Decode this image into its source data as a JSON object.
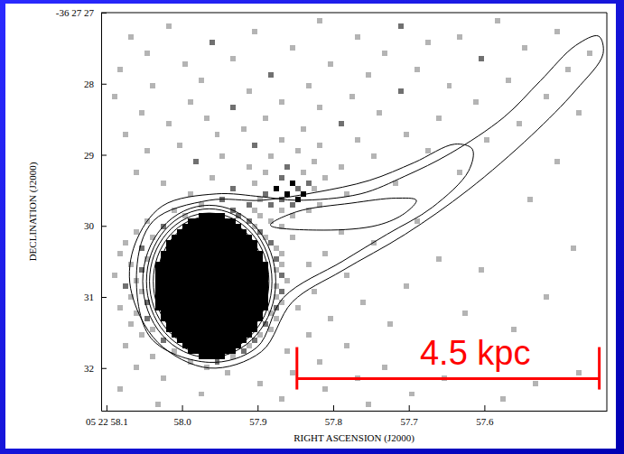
{
  "chart_data": {
    "type": "image",
    "x_label": "RIGHT ASCENSION (J2000)",
    "y_label": "DECLINATION (J2000)",
    "xlim": [
      58.107,
      57.438
    ],
    "ylim": [
      32.6,
      27
    ],
    "xticks": [
      {
        "value": 58.1,
        "label": "05 22 58.1"
      },
      {
        "value": 58.0,
        "label": "58.0"
      },
      57.9,
      57.8,
      57.7,
      57.6
    ],
    "yticks": [
      {
        "value": 27,
        "label": "-36 27 27"
      },
      28,
      29,
      30,
      31,
      32
    ],
    "image": {
      "ra0": 58.107,
      "dec0": 27,
      "dra": -0.00714,
      "ddec": 0.0761,
      "levels": [
        1,
        2,
        3
      ],
      "colors": [
        "#b4b4b4",
        "#707070",
        "#000000"
      ],
      "runs": [
        [
          37,
          18,
          22,
          3
        ],
        [
          38,
          16,
          24,
          3
        ],
        [
          39,
          15,
          25,
          3
        ],
        [
          40,
          14,
          26,
          3
        ],
        [
          41,
          13,
          27,
          3
        ],
        [
          42,
          12,
          28,
          3
        ],
        [
          43,
          12,
          28,
          3
        ],
        [
          44,
          11,
          29,
          3
        ],
        [
          45,
          11,
          29,
          3
        ],
        [
          46,
          10,
          30,
          3
        ],
        [
          47,
          10,
          30,
          3
        ],
        [
          48,
          10,
          30,
          3
        ],
        [
          49,
          10,
          30,
          3
        ],
        [
          50,
          10,
          30,
          3
        ],
        [
          51,
          10,
          30,
          3
        ],
        [
          52,
          10,
          30,
          3
        ],
        [
          53,
          10,
          30,
          3
        ],
        [
          54,
          10,
          30,
          3
        ],
        [
          55,
          11,
          29,
          3
        ],
        [
          56,
          11,
          29,
          3
        ],
        [
          57,
          12,
          28,
          3
        ],
        [
          58,
          12,
          28,
          3
        ],
        [
          59,
          13,
          27,
          3
        ],
        [
          60,
          14,
          26,
          3
        ],
        [
          61,
          15,
          25,
          3
        ],
        [
          62,
          16,
          24,
          3
        ],
        [
          63,
          18,
          22,
          3
        ]
      ],
      "cells": [
        [
          1,
          40,
          1
        ],
        [
          1,
          73,
          1
        ],
        [
          2,
          12,
          1
        ],
        [
          2,
          55,
          2
        ],
        [
          3,
          28,
          1
        ],
        [
          3,
          84,
          1
        ],
        [
          4,
          5,
          1
        ],
        [
          4,
          47,
          1
        ],
        [
          4,
          66,
          1
        ],
        [
          5,
          20,
          2
        ],
        [
          5,
          60,
          1
        ],
        [
          6,
          35,
          1
        ],
        [
          6,
          78,
          1
        ],
        [
          7,
          8,
          1
        ],
        [
          7,
          52,
          1
        ],
        [
          7,
          90,
          1
        ],
        [
          8,
          24,
          1
        ],
        [
          8,
          70,
          2
        ],
        [
          9,
          42,
          1
        ],
        [
          9,
          15,
          1
        ],
        [
          10,
          3,
          1
        ],
        [
          10,
          58,
          1
        ],
        [
          10,
          86,
          1
        ],
        [
          11,
          31,
          2
        ],
        [
          11,
          49,
          1
        ],
        [
          12,
          18,
          1
        ],
        [
          12,
          75,
          1
        ],
        [
          13,
          9,
          1
        ],
        [
          13,
          38,
          1
        ],
        [
          13,
          64,
          1
        ],
        [
          14,
          27,
          1
        ],
        [
          14,
          55,
          2
        ],
        [
          15,
          2,
          1
        ],
        [
          15,
          46,
          1
        ],
        [
          15,
          82,
          1
        ],
        [
          16,
          16,
          1
        ],
        [
          16,
          33,
          1
        ],
        [
          16,
          69,
          1
        ],
        [
          17,
          24,
          2
        ],
        [
          17,
          40,
          1
        ],
        [
          18,
          7,
          1
        ],
        [
          18,
          51,
          1
        ],
        [
          18,
          88,
          1
        ],
        [
          19,
          19,
          1
        ],
        [
          19,
          30,
          1
        ],
        [
          19,
          62,
          1
        ],
        [
          20,
          12,
          1
        ],
        [
          20,
          44,
          2
        ],
        [
          20,
          77,
          1
        ],
        [
          21,
          26,
          1
        ],
        [
          21,
          37,
          1
        ],
        [
          22,
          4,
          1
        ],
        [
          22,
          21,
          1
        ],
        [
          22,
          56,
          1
        ],
        [
          23,
          33,
          1
        ],
        [
          23,
          47,
          1
        ],
        [
          23,
          71,
          1
        ],
        [
          24,
          14,
          1
        ],
        [
          24,
          28,
          2
        ],
        [
          24,
          40,
          1
        ],
        [
          25,
          8,
          1
        ],
        [
          25,
          36,
          1
        ],
        [
          25,
          60,
          1
        ],
        [
          26,
          22,
          1
        ],
        [
          26,
          31,
          1
        ],
        [
          26,
          50,
          1
        ],
        [
          27,
          17,
          2
        ],
        [
          27,
          39,
          1
        ],
        [
          27,
          84,
          1
        ],
        [
          28,
          27,
          1
        ],
        [
          28,
          34,
          2
        ],
        [
          28,
          44,
          1
        ],
        [
          29,
          6,
          1
        ],
        [
          29,
          30,
          1
        ],
        [
          29,
          37,
          1
        ],
        [
          29,
          66,
          1
        ],
        [
          30,
          20,
          1
        ],
        [
          30,
          33,
          2
        ],
        [
          30,
          41,
          1
        ],
        [
          31,
          11,
          1
        ],
        [
          31,
          28,
          1
        ],
        [
          31,
          35,
          3
        ],
        [
          31,
          38,
          2
        ],
        [
          31,
          54,
          1
        ],
        [
          32,
          24,
          2
        ],
        [
          32,
          32,
          3
        ],
        [
          32,
          36,
          2
        ],
        [
          32,
          39,
          1
        ],
        [
          33,
          16,
          1
        ],
        [
          33,
          30,
          2
        ],
        [
          33,
          34,
          3
        ],
        [
          33,
          37,
          3
        ],
        [
          33,
          45,
          1
        ],
        [
          34,
          22,
          2
        ],
        [
          34,
          29,
          1
        ],
        [
          34,
          33,
          2
        ],
        [
          34,
          36,
          3
        ],
        [
          34,
          79,
          1
        ],
        [
          35,
          18,
          1
        ],
        [
          35,
          27,
          2
        ],
        [
          35,
          31,
          2
        ],
        [
          35,
          35,
          2
        ],
        [
          35,
          40,
          1
        ],
        [
          36,
          13,
          1
        ],
        [
          36,
          24,
          2
        ],
        [
          36,
          28,
          1
        ],
        [
          36,
          33,
          1
        ],
        [
          36,
          38,
          1
        ],
        [
          37,
          15,
          1
        ],
        [
          37,
          25,
          2
        ],
        [
          37,
          29,
          1
        ],
        [
          37,
          35,
          1
        ],
        [
          38,
          8,
          1
        ],
        [
          38,
          27,
          2
        ],
        [
          38,
          31,
          1
        ],
        [
          38,
          58,
          1
        ],
        [
          39,
          11,
          2
        ],
        [
          39,
          28,
          1
        ],
        [
          39,
          33,
          1
        ],
        [
          40,
          6,
          1
        ],
        [
          40,
          29,
          2
        ],
        [
          40,
          44,
          1
        ],
        [
          41,
          9,
          1
        ],
        [
          41,
          30,
          1
        ],
        [
          41,
          35,
          1
        ],
        [
          42,
          4,
          1
        ],
        [
          42,
          31,
          2
        ],
        [
          42,
          50,
          1
        ],
        [
          43,
          7,
          2
        ],
        [
          43,
          32,
          1
        ],
        [
          43,
          87,
          1
        ],
        [
          44,
          3,
          1
        ],
        [
          44,
          33,
          1
        ],
        [
          44,
          41,
          1
        ],
        [
          45,
          8,
          1
        ],
        [
          45,
          32,
          2
        ],
        [
          45,
          62,
          1
        ],
        [
          46,
          5,
          1
        ],
        [
          46,
          33,
          1
        ],
        [
          46,
          38,
          1
        ],
        [
          47,
          7,
          2
        ],
        [
          47,
          32,
          1
        ],
        [
          47,
          70,
          1
        ],
        [
          48,
          2,
          1
        ],
        [
          48,
          33,
          2
        ],
        [
          48,
          45,
          1
        ],
        [
          49,
          6,
          1
        ],
        [
          49,
          34,
          1
        ],
        [
          50,
          4,
          2
        ],
        [
          50,
          32,
          1
        ],
        [
          50,
          56,
          1
        ],
        [
          51,
          7,
          1
        ],
        [
          51,
          33,
          2
        ],
        [
          51,
          39,
          1
        ],
        [
          52,
          5,
          1
        ],
        [
          52,
          32,
          1
        ],
        [
          52,
          82,
          1
        ],
        [
          53,
          8,
          2
        ],
        [
          53,
          33,
          1
        ],
        [
          53,
          48,
          1
        ],
        [
          54,
          3,
          1
        ],
        [
          54,
          32,
          2
        ],
        [
          54,
          36,
          1
        ],
        [
          55,
          6,
          1
        ],
        [
          55,
          31,
          1
        ],
        [
          55,
          67,
          1
        ],
        [
          56,
          8,
          2
        ],
        [
          56,
          32,
          1
        ],
        [
          56,
          42,
          1
        ],
        [
          57,
          5,
          1
        ],
        [
          57,
          30,
          2
        ],
        [
          57,
          53,
          1
        ],
        [
          58,
          9,
          1
        ],
        [
          58,
          31,
          1
        ],
        [
          58,
          76,
          1
        ],
        [
          59,
          7,
          1
        ],
        [
          59,
          29,
          1
        ],
        [
          59,
          38,
          1
        ],
        [
          60,
          11,
          2
        ],
        [
          60,
          28,
          2
        ],
        [
          61,
          4,
          1
        ],
        [
          61,
          27,
          1
        ],
        [
          61,
          45,
          1
        ],
        [
          62,
          13,
          1
        ],
        [
          62,
          26,
          2
        ],
        [
          62,
          34,
          1
        ],
        [
          63,
          9,
          1
        ],
        [
          63,
          24,
          1
        ],
        [
          64,
          16,
          1
        ],
        [
          64,
          21,
          2
        ],
        [
          64,
          40,
          1
        ],
        [
          65,
          6,
          1
        ],
        [
          65,
          19,
          1
        ],
        [
          65,
          52,
          1
        ],
        [
          66,
          23,
          1
        ],
        [
          66,
          35,
          1
        ],
        [
          66,
          88,
          1
        ],
        [
          67,
          11,
          1
        ],
        [
          67,
          47,
          1
        ],
        [
          67,
          63,
          1
        ],
        [
          68,
          29,
          1
        ],
        [
          68,
          80,
          1
        ],
        [
          69,
          3,
          1
        ],
        [
          69,
          41,
          1
        ],
        [
          70,
          18,
          1
        ],
        [
          70,
          57,
          1
        ],
        [
          71,
          33,
          1
        ],
        [
          71,
          74,
          1
        ],
        [
          72,
          10,
          1
        ],
        [
          72,
          49,
          1
        ]
      ]
    },
    "contours": [
      {
        "color": "#000000",
        "line_style": "solid",
        "ra": [
          58.068,
          58.032,
          57.964,
          57.895,
          57.854,
          57.788,
          57.705,
          57.621,
          57.538,
          57.479,
          57.443,
          57.449,
          57.479,
          57.526,
          57.574,
          57.645,
          57.705,
          57.764,
          57.848,
          57.895,
          57.955,
          58.026,
          58.062
        ],
        "dec": [
          30.88,
          31.64,
          32.0,
          31.77,
          31.07,
          30.63,
          30.12,
          29.49,
          28.73,
          28.09,
          27.58,
          27.33,
          27.46,
          27.96,
          28.47,
          28.98,
          29.3,
          29.55,
          29.64,
          29.59,
          29.55,
          29.72,
          30.25
        ]
      },
      {
        "color": "#000000",
        "line_style": "solid",
        "ra": [
          58.06,
          58.041,
          57.964,
          57.901,
          57.866,
          57.788,
          57.729,
          57.669,
          57.621,
          57.616,
          57.639,
          57.693,
          57.752,
          57.824,
          57.895,
          57.964,
          58.038
        ],
        "dec": [
          30.63,
          31.58,
          31.92,
          31.71,
          31.01,
          30.5,
          30.12,
          29.74,
          29.23,
          28.92,
          28.85,
          29.11,
          29.36,
          29.53,
          29.64,
          29.64,
          29.93
        ]
      },
      {
        "color": "#000000",
        "line_style": "solid",
        "ra": [
          57.883,
          57.812,
          57.741,
          57.705,
          57.69,
          57.717,
          57.776,
          57.848
        ],
        "dec": [
          29.99,
          30.06,
          29.99,
          29.82,
          29.64,
          29.61,
          29.68,
          29.8
        ]
      }
    ],
    "core_contours": {
      "color": "#000000",
      "ra": 57.964,
      "dec": 30.78,
      "rx": [
        0.088,
        0.083,
        0.079,
        0.074,
        0.069,
        0.064,
        0.06
      ],
      "ry": [
        1.07,
        1.02,
        0.96,
        0.91,
        0.86,
        0.81,
        0.76
      ]
    },
    "scale_bar": {
      "label": "4.5 kpc",
      "x": [
        57.848,
        57.448
      ],
      "y": 32.15,
      "color": "#ff0000"
    }
  }
}
